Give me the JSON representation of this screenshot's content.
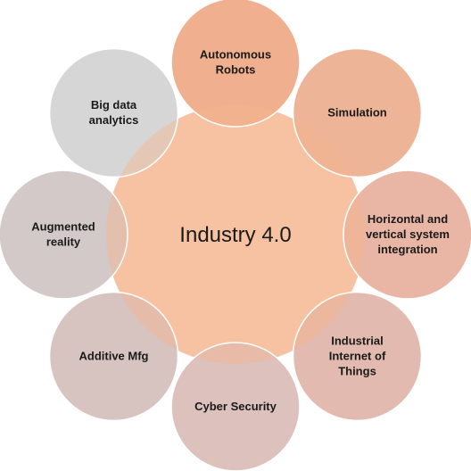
{
  "diagram": {
    "center": {
      "label": "Industry 4.0",
      "color": "#F5B48C"
    },
    "nodes": [
      {
        "lines": [
          "Autonomous",
          "Robots"
        ],
        "color": "#F0B08E"
      },
      {
        "lines": [
          "Simulation"
        ],
        "color": "#EDB497"
      },
      {
        "lines": [
          "Horizontal and",
          "vertical system",
          "integration"
        ],
        "color": "#E9B5A4"
      },
      {
        "lines": [
          "Industrial",
          "Internet of",
          "Things"
        ],
        "color": "#E3BAAF"
      },
      {
        "lines": [
          "Cyber Security"
        ],
        "color": "#DCC1BC"
      },
      {
        "lines": [
          "Additive Mfg"
        ],
        "color": "#D7C3C0"
      },
      {
        "lines": [
          "Augmented",
          "reality"
        ],
        "color": "#D3C9C8"
      },
      {
        "lines": [
          "Big data",
          "analytics"
        ],
        "color": "#D6D6D8"
      }
    ]
  }
}
